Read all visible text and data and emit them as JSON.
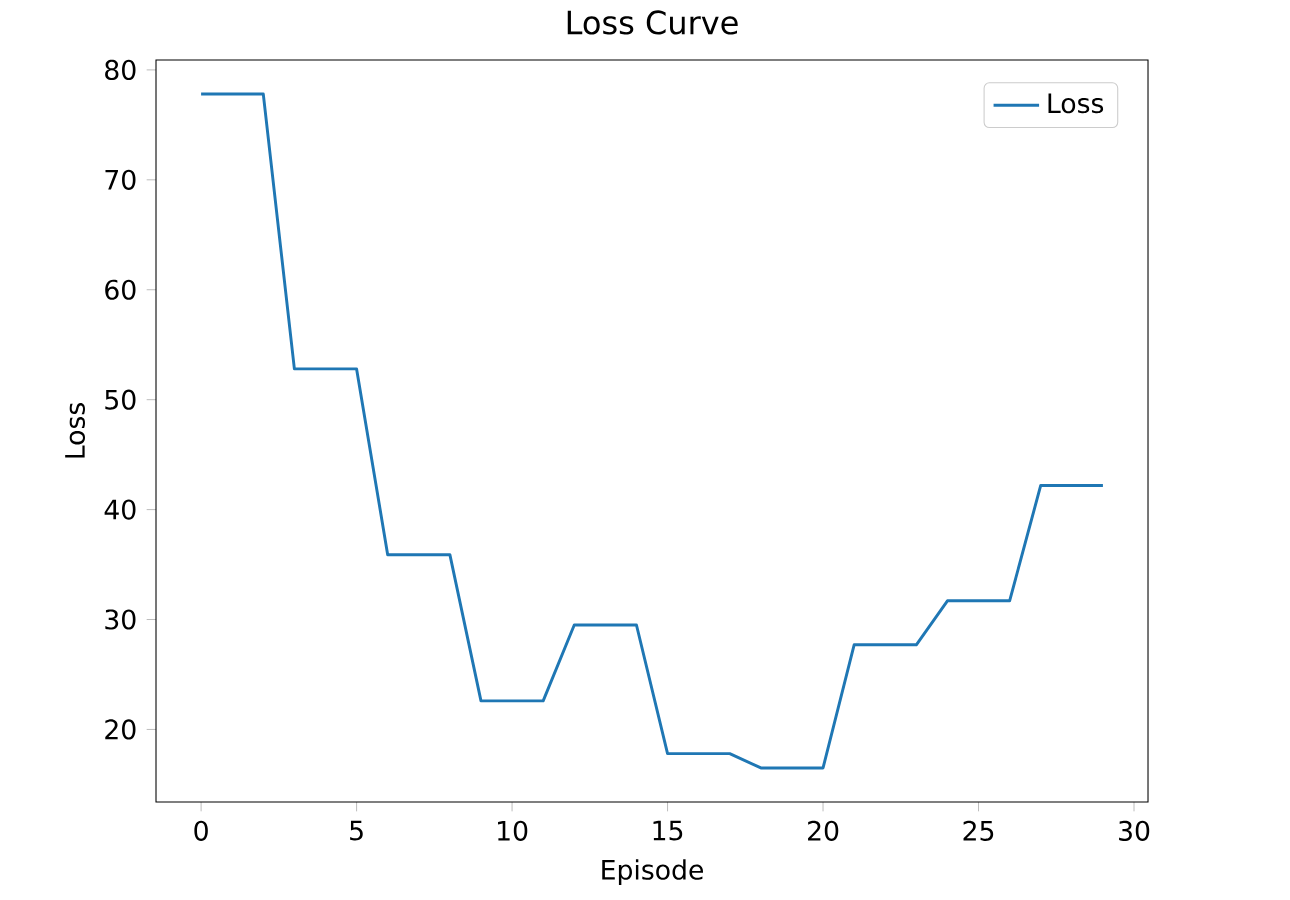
{
  "chart_data": {
    "type": "line",
    "title": "Loss Curve",
    "xlabel": "Episode",
    "ylabel": "Loss",
    "x": [
      0,
      1,
      2,
      3,
      4,
      5,
      6,
      7,
      8,
      9,
      10,
      11,
      12,
      13,
      14,
      15,
      16,
      17,
      18,
      19,
      20,
      21,
      22,
      23,
      24,
      25,
      26,
      27,
      28,
      29
    ],
    "series": [
      {
        "name": "Loss",
        "color": "#1f77b4",
        "values": [
          77.8,
          77.8,
          77.8,
          52.8,
          52.8,
          52.8,
          35.9,
          35.9,
          35.9,
          22.6,
          22.6,
          22.6,
          29.5,
          29.5,
          29.5,
          17.8,
          17.8,
          17.8,
          16.5,
          16.5,
          16.5,
          27.7,
          27.7,
          27.7,
          31.7,
          31.7,
          31.7,
          42.2,
          42.2,
          42.2
        ]
      }
    ],
    "xlim": [
      -1.45,
      30.45
    ],
    "ylim": [
      13.4,
      80.9
    ],
    "xticks": [
      0,
      5,
      10,
      15,
      20,
      25,
      30
    ],
    "yticks": [
      20,
      30,
      40,
      50,
      60,
      70,
      80
    ],
    "legend": "top right",
    "grid": false,
    "marker": "none",
    "line_style": "solid"
  }
}
